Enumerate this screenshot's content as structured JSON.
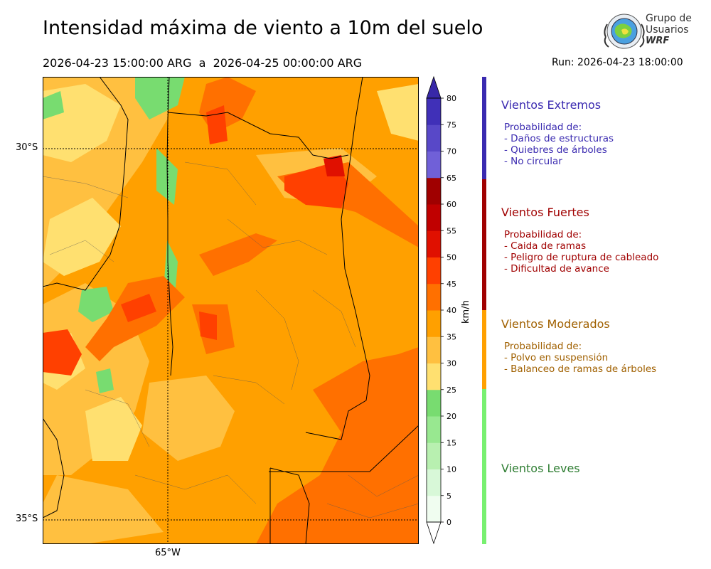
{
  "header": {
    "title": "Intensidad máxima de viento a 10m del suelo",
    "period": "2026-04-23 15:00:00 ARG  a  2026-04-25 00:00:00 ARG",
    "run": "Run: 2026-04-23 18:00:00"
  },
  "logo": {
    "line1": "Grupo de",
    "line2": "Usuarios",
    "line3": "WRF"
  },
  "map": {
    "lat_labels": [
      "30°S",
      "35°S"
    ],
    "lon_labels": [
      "65°W"
    ],
    "field": "intensidad máxima de viento"
  },
  "colorbar": {
    "unit": "km/h",
    "ticks": [
      "0",
      "5",
      "10",
      "15",
      "20",
      "25",
      "30",
      "35",
      "40",
      "45",
      "50",
      "55",
      "60",
      "65",
      "70",
      "75",
      "80"
    ],
    "colors": [
      "#f0fdf0",
      "#d8f8d8",
      "#b8f0b0",
      "#98e890",
      "#78dc70",
      "#ffe070",
      "#ffc040",
      "#ffa000",
      "#ff7000",
      "#ff4000",
      "#e01000",
      "#c00000",
      "#a00000",
      "#7060d8",
      "#5848c8",
      "#4030b8"
    ],
    "over_color": "#3828a8",
    "under_color": "#ffffff"
  },
  "categories": [
    {
      "title": "Vientos Extremos",
      "color": "#3a2ab0",
      "bar_color": "#3a2ab0",
      "heading": "Probabilidad de:",
      "items": [
        "- Daños de estructuras",
        "- Quiebres de árboles",
        "- No circular"
      ]
    },
    {
      "title": "Vientos Fuertes",
      "color": "#a00000",
      "bar_color": "#a00000",
      "heading": "Probabilidad de:",
      "items": [
        "- Caida de ramas",
        "- Peligro de ruptura de cableado",
        "- Dificultad de avance"
      ]
    },
    {
      "title": "Vientos Moderados",
      "color": "#a06000",
      "bar_color": "#ffa000",
      "heading": "Probabilidad de:",
      "items": [
        "- Polvo en suspensión",
        "- Balanceo de ramas de árboles"
      ]
    },
    {
      "title": "Vientos Leves",
      "color": "#2e7d32",
      "bar_color": "#78f070",
      "heading": "",
      "items": []
    }
  ]
}
